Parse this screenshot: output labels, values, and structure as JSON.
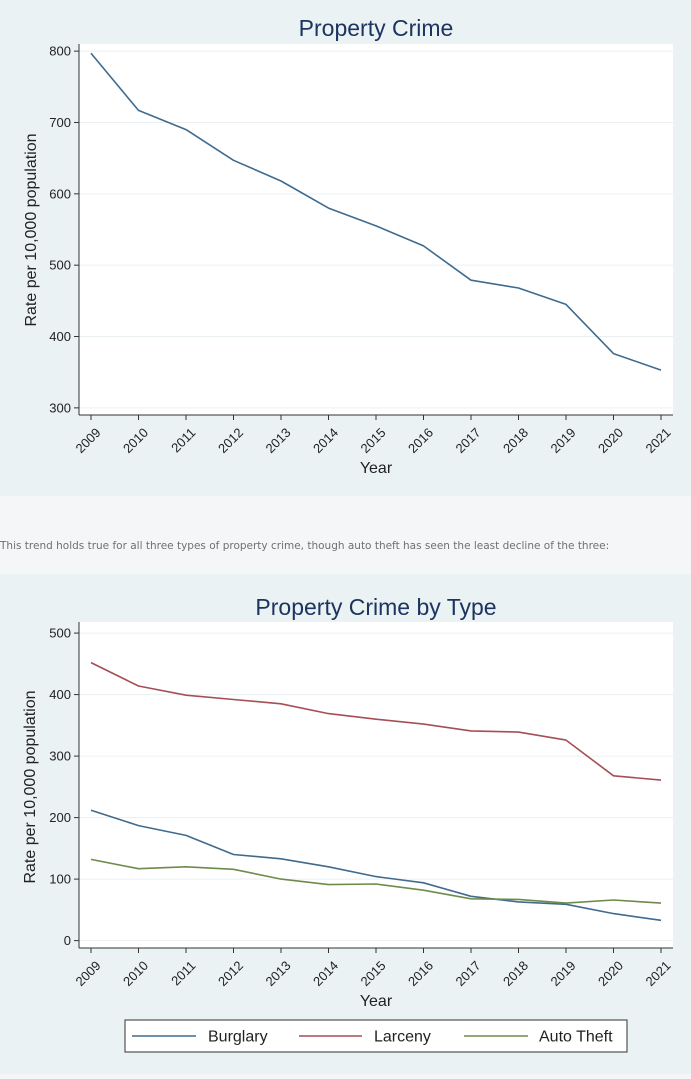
{
  "caption": "This trend holds true for all three types of property crime, though auto theft has seen the least decline of the three:",
  "chart_data": [
    {
      "type": "line",
      "title": "Property Crime",
      "xlabel": "Year",
      "ylabel": "Rate per 10,000 population",
      "x": [
        "2009",
        "2010",
        "2011",
        "2012",
        "2013",
        "2014",
        "2015",
        "2016",
        "2017",
        "2018",
        "2019",
        "2020",
        "2021"
      ],
      "ylim": [
        290,
        810
      ],
      "yticks": [
        300,
        400,
        500,
        600,
        700,
        800
      ],
      "grid": true,
      "series": [
        {
          "values": [
            797,
            717,
            690,
            647,
            618,
            580,
            555,
            527,
            479,
            468,
            445,
            376,
            353
          ]
        }
      ],
      "colors": [
        "#3f6b8f"
      ]
    },
    {
      "type": "line",
      "title": "Property Crime by Type",
      "xlabel": "Year",
      "ylabel": "Rate per 10,000 population",
      "x": [
        "2009",
        "2010",
        "2011",
        "2012",
        "2013",
        "2014",
        "2015",
        "2016",
        "2017",
        "2018",
        "2019",
        "2020",
        "2021"
      ],
      "ylim": [
        -12,
        518
      ],
      "yticks": [
        0,
        100,
        200,
        300,
        400,
        500
      ],
      "grid": true,
      "legend": "bottom",
      "series": [
        {
          "name": "Burglary",
          "values": [
            212,
            187,
            171,
            140,
            133,
            120,
            104,
            94,
            72,
            63,
            59,
            44,
            33
          ]
        },
        {
          "name": "Larceny",
          "values": [
            452,
            414,
            399,
            392,
            385,
            369,
            360,
            352,
            341,
            339,
            326,
            268,
            261
          ]
        },
        {
          "name": "Auto Theft",
          "values": [
            132,
            117,
            120,
            116,
            100,
            91,
            92,
            82,
            68,
            67,
            61,
            66,
            61
          ]
        }
      ],
      "colors": [
        "#3f6b8f",
        "#a54f55",
        "#6e8b4b"
      ]
    }
  ]
}
